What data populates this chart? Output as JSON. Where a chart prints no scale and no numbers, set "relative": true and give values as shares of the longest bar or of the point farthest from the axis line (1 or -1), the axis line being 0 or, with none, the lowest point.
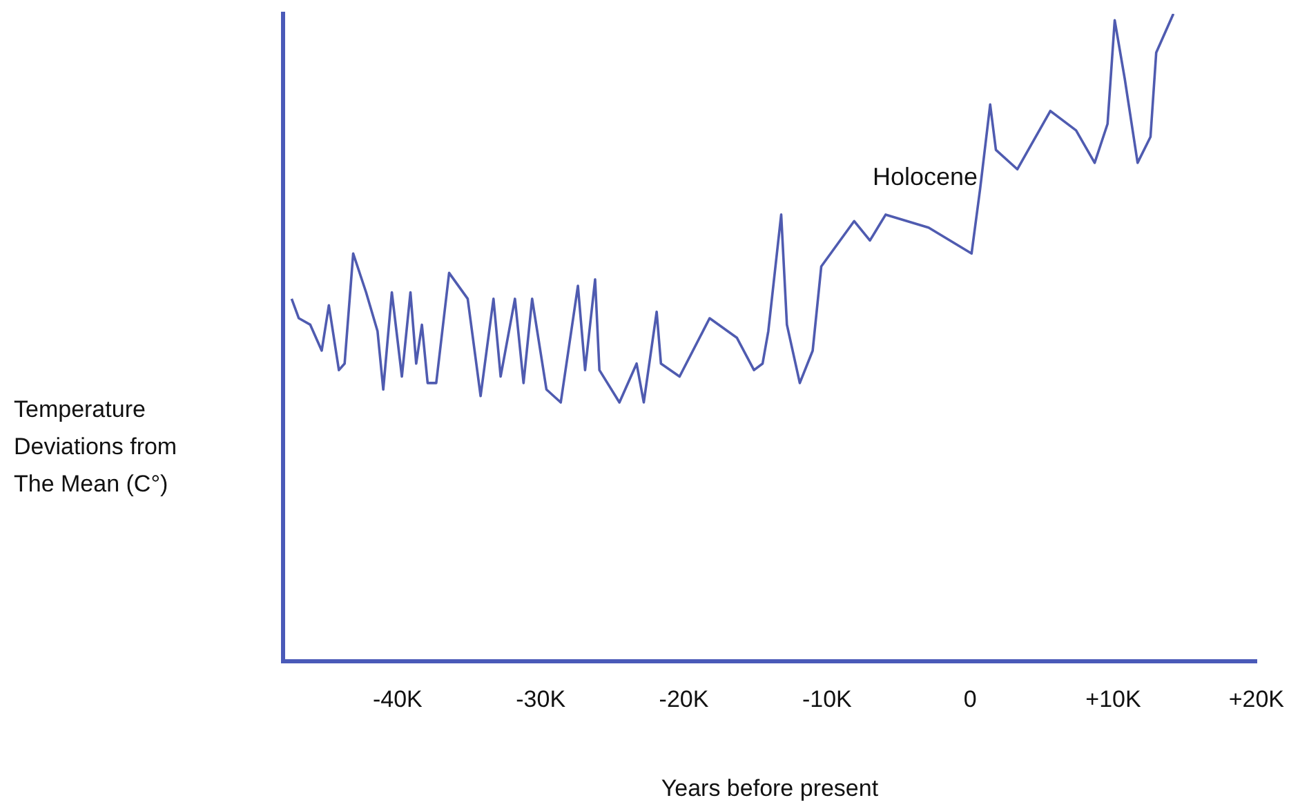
{
  "chart_data": {
    "type": "line",
    "relative": true,
    "xlabel": "Years before present",
    "ylabel": "Temperature Deviations from The Mean (C°)",
    "annotations": [
      "Holocene"
    ],
    "xlim": [
      -48000,
      20000
    ],
    "xticks": [
      {
        "value": -40000,
        "label": "-40K"
      },
      {
        "value": -30000,
        "label": "-30K"
      },
      {
        "value": -20000,
        "label": "-20K"
      },
      {
        "value": -10000,
        "label": "-10K"
      },
      0,
      {
        "value": 10000,
        "label": "+10K"
      },
      {
        "value": 20000,
        "label": "+20K"
      }
    ],
    "grid": false,
    "legend": false,
    "marker": "none",
    "line_style": "solid",
    "series": [
      {
        "color": "#4f5bb0",
        "x": [
          -47400,
          -46900,
          -46100,
          -45300,
          -44800,
          -44100,
          -43700,
          -43100,
          -42200,
          -41400,
          -41000,
          -40400,
          -39700,
          -39100,
          -38700,
          -38300,
          -37900,
          -37300,
          -36400,
          -35100,
          -34200,
          -33300,
          -32800,
          -31800,
          -31200,
          -30600,
          -29600,
          -28600,
          -27400,
          -26900,
          -26200,
          -25900,
          -24500,
          -23300,
          -22800,
          -21900,
          -21600,
          -20300,
          -18200,
          -16300,
          -15100,
          -14500,
          -14100,
          -13200,
          -12800,
          -11900,
          -11000,
          -10400,
          -8100,
          -7000,
          -5900,
          -2900,
          100,
          700,
          1400,
          1800,
          3300,
          5600,
          7400,
          8700,
          9600,
          10100,
          10800,
          11700,
          12600,
          13000,
          14200
        ],
        "values": [
          0.56,
          0.53,
          0.52,
          0.48,
          0.55,
          0.45,
          0.46,
          0.63,
          0.57,
          0.51,
          0.42,
          0.57,
          0.44,
          0.57,
          0.46,
          0.52,
          0.43,
          0.43,
          0.6,
          0.56,
          0.41,
          0.56,
          0.44,
          0.56,
          0.43,
          0.56,
          0.42,
          0.4,
          0.58,
          0.45,
          0.59,
          0.45,
          0.4,
          0.46,
          0.4,
          0.54,
          0.46,
          0.44,
          0.53,
          0.5,
          0.45,
          0.46,
          0.51,
          0.69,
          0.52,
          0.43,
          0.48,
          0.61,
          0.68,
          0.65,
          0.69,
          0.67,
          0.63,
          0.73,
          0.86,
          0.79,
          0.76,
          0.85,
          0.82,
          0.77,
          0.83,
          0.99,
          0.9,
          0.77,
          0.81,
          0.94,
          1
        ]
      }
    ]
  }
}
